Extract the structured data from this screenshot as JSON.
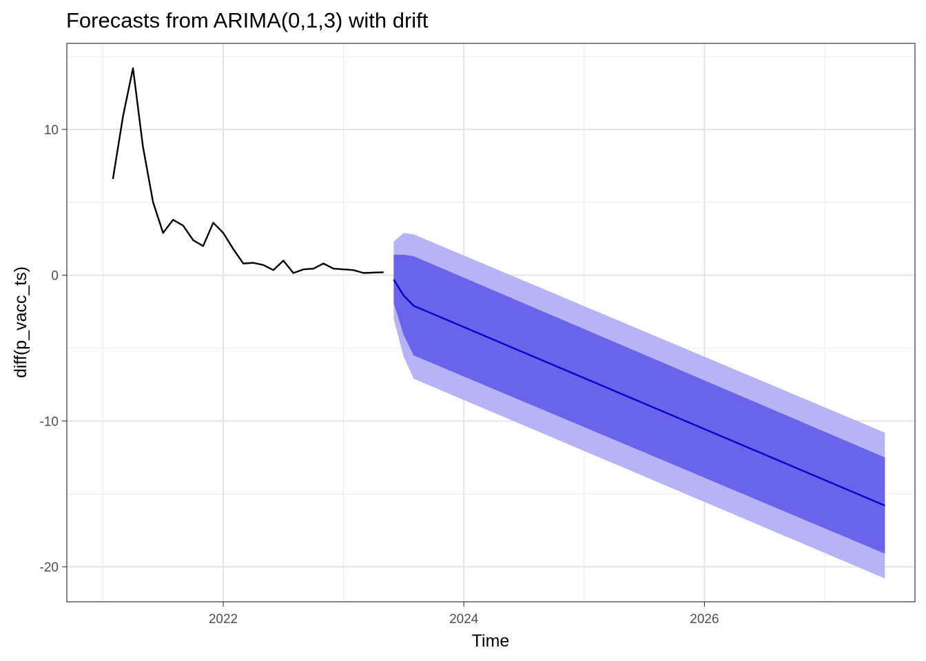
{
  "chart_data": {
    "type": "line",
    "title": "Forecasts from ARIMA(0,1,3) with drift",
    "xlabel": "Time",
    "ylabel": "diff(p_vacc_ts)",
    "xlim": [
      2020.7,
      2027.75
    ],
    "ylim": [
      -22.4,
      15.9
    ],
    "x_ticks": [
      2022,
      2024,
      2026
    ],
    "x_tick_labels": [
      "2022",
      "2024",
      "2026"
    ],
    "y_ticks": [
      -20,
      -10,
      0,
      10
    ],
    "y_tick_labels": [
      "-20",
      "-10",
      "0",
      "10"
    ],
    "grid": true,
    "legend": "none",
    "series": [
      {
        "kind": "history",
        "color": "#000000",
        "x": [
          2021.083,
          2021.167,
          2021.25,
          2021.333,
          2021.417,
          2021.5,
          2021.583,
          2021.667,
          2021.75,
          2021.833,
          2021.917,
          2022.0,
          2022.083,
          2022.167,
          2022.25,
          2022.333,
          2022.417,
          2022.5,
          2022.583,
          2022.667,
          2022.75,
          2022.833,
          2022.917,
          2023.0,
          2023.083,
          2023.167,
          2023.25,
          2023.333
        ],
        "y": [
          6.6,
          10.9,
          14.2,
          8.8,
          5.0,
          2.9,
          3.8,
          3.4,
          2.4,
          2.0,
          3.6,
          2.9,
          1.8,
          0.8,
          0.85,
          0.7,
          0.35,
          1.0,
          0.15,
          0.4,
          0.45,
          0.8,
          0.45,
          0.4,
          0.35,
          0.15,
          0.18,
          0.2
        ]
      },
      {
        "kind": "forecast",
        "color": "#0000cd",
        "x": [
          2023.417,
          2023.5,
          2023.583,
          2027.5
        ],
        "y": [
          -0.3,
          -1.4,
          -2.1,
          -15.8
        ],
        "lo80": [
          -1.9,
          -4.1,
          -5.5,
          -19.1
        ],
        "hi80": [
          1.4,
          1.4,
          1.3,
          -12.5
        ],
        "lo95": [
          -3.0,
          -5.6,
          -7.1,
          -20.8
        ],
        "hi95": [
          2.3,
          2.9,
          2.8,
          -10.8
        ]
      }
    ],
    "band_colors": {
      "pi80": "#6a64eb",
      "pi95": "#b6b4f5"
    }
  }
}
